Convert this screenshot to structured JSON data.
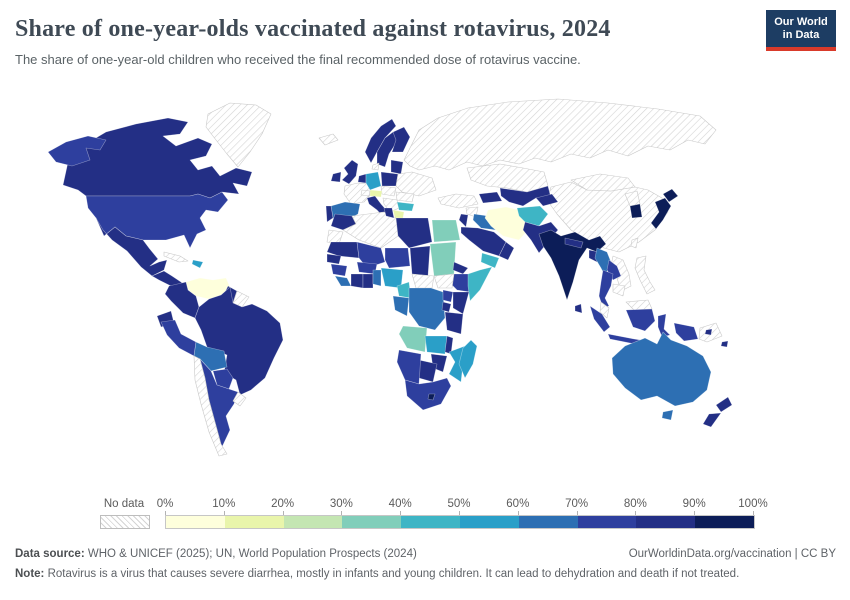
{
  "header": {
    "title": "Share of one-year-olds vaccinated against rotavirus, 2024",
    "subtitle": "The share of one-year-old children who received the final recommended dose of rotavirus vaccine.",
    "logo": {
      "line1": "Our World",
      "line2": "in Data",
      "bg_color": "#1d3d63",
      "accent_color": "#d93a2a"
    }
  },
  "legend": {
    "no_data_label": "No data",
    "tick_labels": [
      "0%",
      "10%",
      "20%",
      "30%",
      "40%",
      "50%",
      "60%",
      "70%",
      "80%",
      "90%",
      "100%"
    ]
  },
  "footer": {
    "source_label": "Data source:",
    "source_text": " WHO & UNICEF (2025); UN, World Population Prospects (2024)",
    "rights": "OurWorldinData.org/vaccination | CC BY",
    "note_label": "Note:",
    "note_text": " Rotavirus is a virus that causes severe diarrhea, mostly in infants and young children. It can lead to dehydration and death if not treated."
  },
  "chart_data": {
    "type": "heatmap",
    "title": "Share of one-year-olds vaccinated against rotavirus, 2024",
    "unit": "%",
    "legend_position": "bottom",
    "bins": {
      "labels": [
        "0-10%",
        "10-20%",
        "20-30%",
        "30-40%",
        "40-50%",
        "50-60%",
        "60-70%",
        "70-80%",
        "80-90%",
        "90-100%"
      ],
      "colors": [
        "#feffdc",
        "#e9f5ab",
        "#c4e6b2",
        "#81ceba",
        "#3eb5c5",
        "#2a9fc8",
        "#2d6fb3",
        "#2e3f9e",
        "#232f85",
        "#0c1d58"
      ]
    },
    "no_data_style": {
      "fill": "#ffffff",
      "hatch": "#d4d4d4",
      "border": "#c9c9c9"
    },
    "regions": [
      {
        "id": "russia",
        "name": "Russia",
        "bin": null
      },
      {
        "id": "kazakhstan",
        "name": "Kazakhstan",
        "bin": null
      },
      {
        "id": "china",
        "name": "China",
        "bin": null
      },
      {
        "id": "mongolia",
        "name": "Mongolia",
        "bin": null
      },
      {
        "id": "greenland",
        "name": "Greenland",
        "bin": null
      },
      {
        "id": "canada",
        "name": "Canada",
        "bin": 8
      },
      {
        "id": "alaska",
        "name": "United States (Alaska)",
        "bin": 7
      },
      {
        "id": "usa",
        "name": "United States",
        "bin": 7
      },
      {
        "id": "mexico",
        "name": "Mexico",
        "bin": 8
      },
      {
        "id": "central-america",
        "name": "Central America",
        "bin": 8
      },
      {
        "id": "cuba",
        "name": "Cuba",
        "bin": null
      },
      {
        "id": "hispaniola",
        "name": "Haiti / Dominican Republic",
        "bin": 5
      },
      {
        "id": "venezuela",
        "name": "Venezuela",
        "bin": 0
      },
      {
        "id": "colombia",
        "name": "Colombia",
        "bin": 8
      },
      {
        "id": "guyana",
        "name": "Guyana",
        "bin": 8
      },
      {
        "id": "suriname",
        "name": "Suriname / French Guiana",
        "bin": null
      },
      {
        "id": "brazil",
        "name": "Brazil",
        "bin": 8
      },
      {
        "id": "ecuador",
        "name": "Ecuador",
        "bin": 8
      },
      {
        "id": "peru",
        "name": "Peru",
        "bin": 7
      },
      {
        "id": "bolivia",
        "name": "Bolivia",
        "bin": 6
      },
      {
        "id": "paraguay",
        "name": "Paraguay",
        "bin": 7
      },
      {
        "id": "argentina",
        "name": "Argentina",
        "bin": 7
      },
      {
        "id": "chile",
        "name": "Chile",
        "bin": null
      },
      {
        "id": "uruguay",
        "name": "Uruguay",
        "bin": null
      },
      {
        "id": "iceland",
        "name": "Iceland",
        "bin": null
      },
      {
        "id": "norway",
        "name": "Norway",
        "bin": 8
      },
      {
        "id": "sweden",
        "name": "Sweden",
        "bin": 8
      },
      {
        "id": "finland",
        "name": "Finland",
        "bin": 8
      },
      {
        "id": "denmark",
        "name": "Denmark",
        "bin": null
      },
      {
        "id": "uk",
        "name": "United Kingdom",
        "bin": 8
      },
      {
        "id": "ireland",
        "name": "Ireland",
        "bin": 8
      },
      {
        "id": "france",
        "name": "France",
        "bin": null
      },
      {
        "id": "spain",
        "name": "Spain",
        "bin": 6
      },
      {
        "id": "portugal",
        "name": "Portugal",
        "bin": 8
      },
      {
        "id": "benelux",
        "name": "Belgium / Netherlands",
        "bin": 8
      },
      {
        "id": "germany",
        "name": "Germany",
        "bin": 5
      },
      {
        "id": "poland",
        "name": "Poland",
        "bin": 8
      },
      {
        "id": "baltics",
        "name": "Baltic states",
        "bin": 8
      },
      {
        "id": "belarus-ukraine",
        "name": "Belarus / Ukraine",
        "bin": null
      },
      {
        "id": "romania",
        "name": "Romania",
        "bin": null
      },
      {
        "id": "central-europe",
        "name": "Czechia / Slovakia / Hungary",
        "bin": null
      },
      {
        "id": "austria",
        "name": "Austria",
        "bin": 1
      },
      {
        "id": "switzerland",
        "name": "Switzerland",
        "bin": null
      },
      {
        "id": "italy",
        "name": "Italy",
        "bin": 8
      },
      {
        "id": "balkans",
        "name": "Balkans",
        "bin": null
      },
      {
        "id": "greece",
        "name": "Greece",
        "bin": 1
      },
      {
        "id": "bulgaria",
        "name": "Bulgaria",
        "bin": 4
      },
      {
        "id": "turkey",
        "name": "Turkey",
        "bin": null
      },
      {
        "id": "caucasus",
        "name": "Caucasus",
        "bin": 8
      },
      {
        "id": "syria",
        "name": "Syria",
        "bin": null
      },
      {
        "id": "iraq",
        "name": "Iraq",
        "bin": 6
      },
      {
        "id": "iran",
        "name": "Iran",
        "bin": 0
      },
      {
        "id": "jordan-israel",
        "name": "Israel / Jordan",
        "bin": 8
      },
      {
        "id": "saudi",
        "name": "Saudi Arabia",
        "bin": 8
      },
      {
        "id": "yemen",
        "name": "Yemen",
        "bin": 4
      },
      {
        "id": "oman",
        "name": "Oman",
        "bin": 8
      },
      {
        "id": "central-asia",
        "name": "Turkmenistan / Uzbekistan",
        "bin": 8
      },
      {
        "id": "kyrgyz-tajik",
        "name": "Kyrgyzstan / Tajikistan",
        "bin": 8
      },
      {
        "id": "afghanistan",
        "name": "Afghanistan",
        "bin": 4
      },
      {
        "id": "pakistan",
        "name": "Pakistan",
        "bin": 8
      },
      {
        "id": "india",
        "name": "India",
        "bin": 9
      },
      {
        "id": "nepal",
        "name": "Nepal",
        "bin": 8
      },
      {
        "id": "bangladesh",
        "name": "Bangladesh",
        "bin": 8
      },
      {
        "id": "sri-lanka",
        "name": "Sri Lanka",
        "bin": 8
      },
      {
        "id": "myanmar",
        "name": "Myanmar",
        "bin": 6
      },
      {
        "id": "vietnam",
        "name": "Vietnam",
        "bin": null
      },
      {
        "id": "laos",
        "name": "Laos",
        "bin": 7
      },
      {
        "id": "thailand",
        "name": "Thailand",
        "bin": 7
      },
      {
        "id": "cambodia",
        "name": "Cambodia",
        "bin": null
      },
      {
        "id": "malaysia",
        "name": "Malaysia",
        "bin": null
      },
      {
        "id": "borneo-malaysia",
        "name": "Malaysia (Borneo)",
        "bin": null
      },
      {
        "id": "indonesia",
        "name": "Indonesia",
        "bin": 7
      },
      {
        "id": "philippines",
        "name": "Philippines",
        "bin": null
      },
      {
        "id": "taiwan",
        "name": "Taiwan",
        "bin": null
      },
      {
        "id": "japan",
        "name": "Japan",
        "bin": 9
      },
      {
        "id": "north-korea",
        "name": "North Korea",
        "bin": null
      },
      {
        "id": "south-korea",
        "name": "South Korea",
        "bin": 9
      },
      {
        "id": "png",
        "name": "Papua New Guinea",
        "bin": null
      },
      {
        "id": "australia",
        "name": "Australia",
        "bin": 6
      },
      {
        "id": "tasmania",
        "name": "Australia (Tasmania)",
        "bin": 6
      },
      {
        "id": "new-zealand",
        "name": "New Zealand",
        "bin": 8
      },
      {
        "id": "melanesia",
        "name": "Solomon Islands / Vanuatu",
        "bin": 8
      },
      {
        "id": "morocco",
        "name": "Morocco",
        "bin": 8
      },
      {
        "id": "wsahara",
        "name": "Western Sahara",
        "bin": null
      },
      {
        "id": "algeria",
        "name": "Algeria",
        "bin": null
      },
      {
        "id": "tunisia",
        "name": "Tunisia",
        "bin": 8
      },
      {
        "id": "libya",
        "name": "Libya",
        "bin": 8
      },
      {
        "id": "egypt",
        "name": "Egypt",
        "bin": 3
      },
      {
        "id": "mauritania",
        "name": "Mauritania",
        "bin": 8
      },
      {
        "id": "mali",
        "name": "Mali",
        "bin": 7
      },
      {
        "id": "niger",
        "name": "Niger",
        "bin": 7
      },
      {
        "id": "chad",
        "name": "Chad",
        "bin": 8
      },
      {
        "id": "sudan",
        "name": "Sudan",
        "bin": 3
      },
      {
        "id": "eritrea",
        "name": "Eritrea",
        "bin": 8
      },
      {
        "id": "ethiopia",
        "name": "Ethiopia",
        "bin": 7
      },
      {
        "id": "somalia",
        "name": "Somalia",
        "bin": 4
      },
      {
        "id": "south-sudan",
        "name": "South Sudan",
        "bin": null
      },
      {
        "id": "car",
        "name": "Central African Republic",
        "bin": null
      },
      {
        "id": "senegal",
        "name": "Senegal",
        "bin": 8
      },
      {
        "id": "guinea",
        "name": "Guinea",
        "bin": 7
      },
      {
        "id": "sierra-leone-liberia",
        "name": "Sierra Leone / Liberia",
        "bin": 6
      },
      {
        "id": "ivory-coast",
        "name": "Cote d'Ivoire",
        "bin": 8
      },
      {
        "id": "ghana",
        "name": "Ghana",
        "bin": 8
      },
      {
        "id": "burkina",
        "name": "Burkina Faso",
        "bin": 7
      },
      {
        "id": "benin-togo",
        "name": "Benin / Togo",
        "bin": 6
      },
      {
        "id": "nigeria",
        "name": "Nigeria",
        "bin": 5
      },
      {
        "id": "cameroon",
        "name": "Cameroon",
        "bin": 4
      },
      {
        "id": "gabon-congo",
        "name": "Gabon / Congo",
        "bin": 6
      },
      {
        "id": "drc",
        "name": "Democratic Republic of Congo",
        "bin": 6
      },
      {
        "id": "uganda",
        "name": "Uganda",
        "bin": 7
      },
      {
        "id": "kenya",
        "name": "Kenya",
        "bin": 8
      },
      {
        "id": "rwanda-burundi",
        "name": "Rwanda / Burundi",
        "bin": 8
      },
      {
        "id": "tanzania",
        "name": "Tanzania",
        "bin": 8
      },
      {
        "id": "angola",
        "name": "Angola",
        "bin": 3
      },
      {
        "id": "zambia",
        "name": "Zambia",
        "bin": 5
      },
      {
        "id": "malawi",
        "name": "Malawi",
        "bin": 8
      },
      {
        "id": "mozambique",
        "name": "Mozambique",
        "bin": 5
      },
      {
        "id": "zimbabwe",
        "name": "Zimbabwe",
        "bin": 8
      },
      {
        "id": "botswana",
        "name": "Botswana",
        "bin": 8
      },
      {
        "id": "namibia",
        "name": "Namibia",
        "bin": 7
      },
      {
        "id": "south-africa",
        "name": "South Africa",
        "bin": 7
      },
      {
        "id": "lesotho",
        "name": "Lesotho",
        "bin": 9
      },
      {
        "id": "madagascar",
        "name": "Madagascar",
        "bin": 5
      }
    ]
  }
}
